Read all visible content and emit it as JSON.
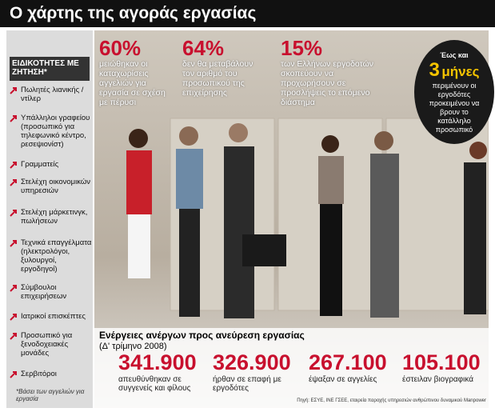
{
  "header": {
    "title": "Ο χάρτης της αγοράς εργασίας"
  },
  "sidebar": {
    "heading": "ΕΙΔΙΚΟΤΗΤΕΣ ΜΕ ΖΗΤΗΣΗ*",
    "items": [
      "Πωλητές λιανικής / ντίλερ",
      "Υπάλληλοι γραφείου (προσωπικό για τηλεφωνικό κέντρο, ρεσεψιονίστ)",
      "Γραμματείς",
      "Στελέχη οικονομικών υπηρεσιών",
      "Στελέχη μάρκετινγκ, πωλήσεων",
      "Τεχνικά επαγγέλματα (ηλεκτρολόγοι, ξυλουργοί, εργοδηγοί)",
      "Σύμβουλοι επιχειρήσεων",
      "Ιατρικοί επισκέπτες",
      "Προσωπικό για ξενοδοχειακές μονάδες",
      "Σερβιτόροι"
    ],
    "footnote": "*Βάσει των αγγελιών για εργασία"
  },
  "top_stats": [
    {
      "value": "60%",
      "text": "μειώθηκαν οι καταχωρίσεις αγγελιών για εργασία σε σχέση με πέρυσι"
    },
    {
      "value": "64%",
      "text": "δεν θα μεταβάλουν τον αριθμό του προσωπικού της επιχείρησης"
    },
    {
      "value": "15%",
      "text": "των Ελλήνων εργοδοτών σκοπεύουν να προχωρήσουν σε προσλήψεις το επόμενο διάστημα"
    }
  ],
  "callout": {
    "prefix": "Έως και",
    "number": "3",
    "unit": "μήνες",
    "text": "περιμένουν οι εργοδότες προκειμένου να βρουν το κατάλληλο προσωπικό"
  },
  "bottom": {
    "title": "Ενέργειες ανέργων προς ανεύρεση εργασίας",
    "subtitle": "(Δ' τρίμηνο 2008)",
    "stats": [
      {
        "value": "341.900",
        "text": "απευθύνθηκαν σε συγγενείς και φίλους"
      },
      {
        "value": "326.900",
        "text": "ήρθαν σε επαφή με εργοδότες"
      },
      {
        "value": "267.100",
        "text": "έψαξαν σε αγγελίες"
      },
      {
        "value": "105.100",
        "text": "έστειλαν βιογραφικά"
      }
    ]
  },
  "source": "Πηγή: ΕΣΥΕ, ΙΝΕ ΓΣΕΕ, εταιρεία παροχής υπηρεσιών ανθρώπινου δυναμικού Manpower"
}
